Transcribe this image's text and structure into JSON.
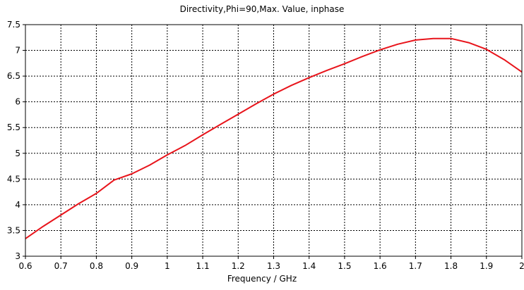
{
  "chart_data": {
    "type": "line",
    "title": "Directivity,Phi=90,Max. Value, inphase",
    "xlabel": "Frequency / GHz",
    "ylabel": "",
    "xlim": [
      0.6,
      2.0
    ],
    "ylim": [
      3.0,
      7.5
    ],
    "xticks": [
      0.6,
      0.7,
      0.8,
      0.9,
      1.0,
      1.1,
      1.2,
      1.3,
      1.4,
      1.5,
      1.6,
      1.7,
      1.8,
      1.9,
      2.0
    ],
    "xtick_labels": [
      "0.6",
      "0.7",
      "0.8",
      "0.9",
      "1",
      "1.1",
      "1.2",
      "1.3",
      "1.4",
      "1.5",
      "1.6",
      "1.7",
      "1.8",
      "1.9",
      "2"
    ],
    "yticks": [
      3.0,
      3.5,
      4.0,
      4.5,
      5.0,
      5.5,
      6.0,
      6.5,
      7.0,
      7.5
    ],
    "ytick_labels": [
      "3",
      "3.5",
      "4",
      "4.5",
      "5",
      "5.5",
      "6",
      "6.5",
      "7",
      "7.5"
    ],
    "grid": true,
    "grid_style": "dotted",
    "series": [
      {
        "color": "#e8141b",
        "x": [
          0.6,
          0.65,
          0.7,
          0.75,
          0.8,
          0.85,
          0.9,
          0.95,
          1.0,
          1.05,
          1.1,
          1.15,
          1.2,
          1.25,
          1.3,
          1.35,
          1.4,
          1.45,
          1.5,
          1.55,
          1.6,
          1.65,
          1.7,
          1.75,
          1.8,
          1.85,
          1.9,
          1.95,
          2.0
        ],
        "y": [
          3.34,
          3.58,
          3.8,
          4.02,
          4.22,
          4.48,
          4.6,
          4.77,
          4.97,
          5.15,
          5.36,
          5.56,
          5.76,
          5.96,
          6.15,
          6.32,
          6.47,
          6.61,
          6.74,
          6.88,
          7.01,
          7.12,
          7.2,
          7.23,
          7.23,
          7.15,
          7.02,
          6.82,
          6.58
        ]
      }
    ]
  }
}
